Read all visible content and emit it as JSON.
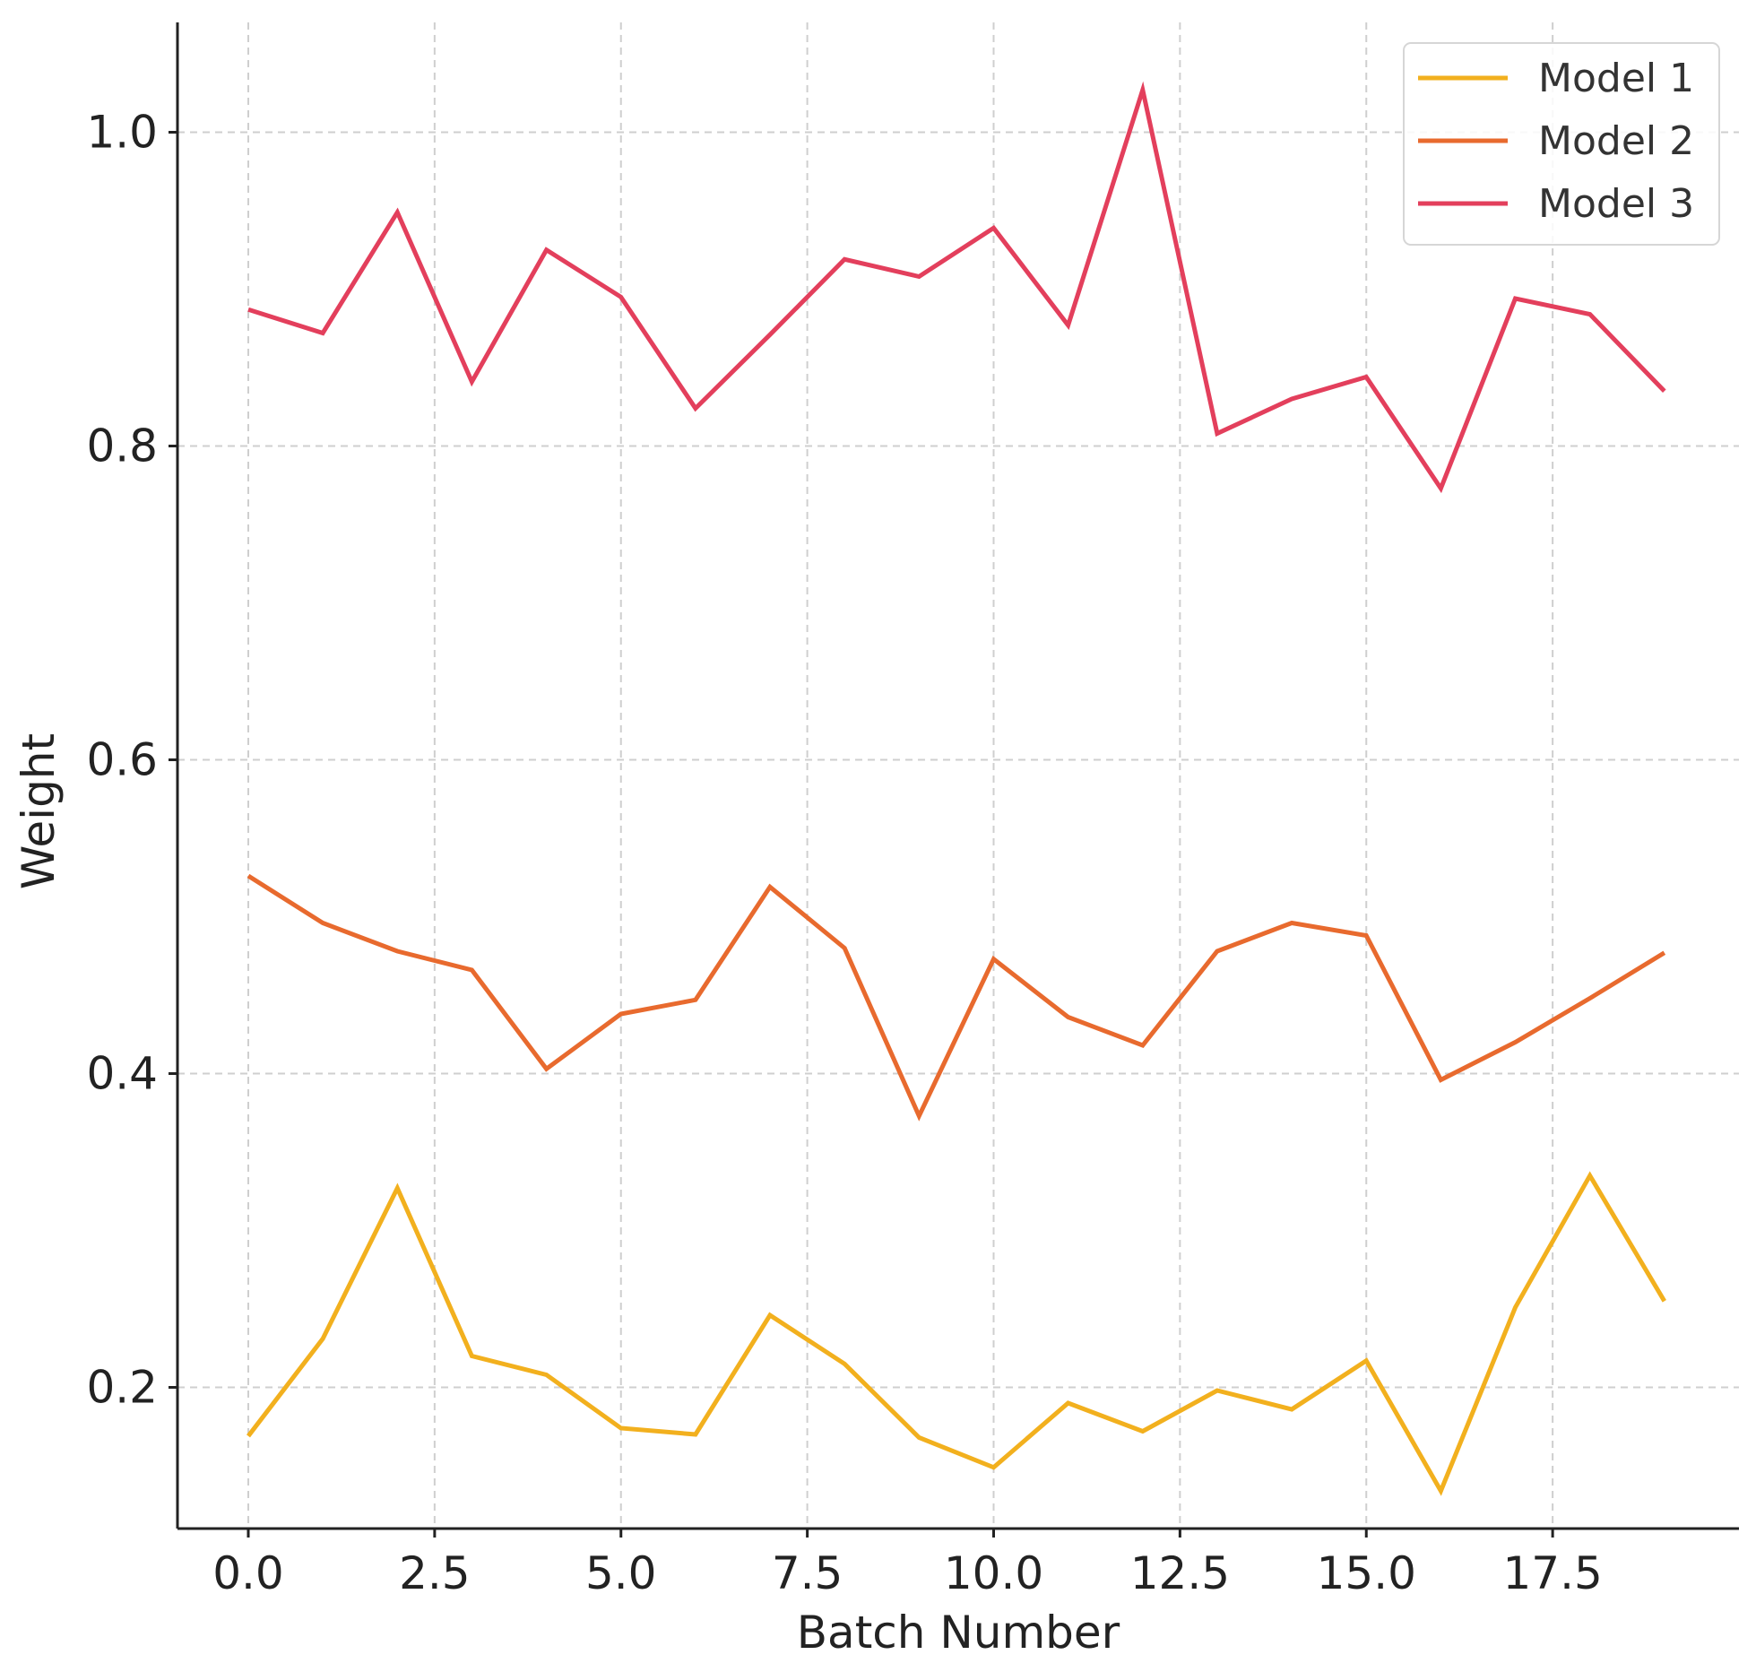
{
  "chart_data": {
    "type": "line",
    "title": "",
    "xlabel": "Batch Number",
    "ylabel": "Weight",
    "xlim": [
      -0.95,
      20.0
    ],
    "ylim": [
      0.11,
      1.07
    ],
    "xticks": [
      0.0,
      2.5,
      5.0,
      7.5,
      10.0,
      12.5,
      15.0,
      17.5
    ],
    "xtick_labels": [
      "0.0",
      "2.5",
      "5.0",
      "7.5",
      "10.0",
      "12.5",
      "15.0",
      "17.5"
    ],
    "yticks": [
      0.2,
      0.4,
      0.6,
      0.8,
      1.0
    ],
    "ytick_labels": [
      "0.2",
      "0.4",
      "0.6",
      "0.8",
      "1.0"
    ],
    "grid": true,
    "legend_position": "top-right",
    "x": [
      0,
      1,
      2,
      3,
      4,
      5,
      6,
      7,
      8,
      9,
      10,
      11,
      12,
      13,
      14,
      15,
      16,
      17,
      18,
      19
    ],
    "series": [
      {
        "name": "Model 1",
        "color": "#f2b01e",
        "values": [
          0.169,
          0.231,
          0.327,
          0.22,
          0.208,
          0.174,
          0.17,
          0.246,
          0.215,
          0.168,
          0.149,
          0.19,
          0.172,
          0.198,
          0.186,
          0.217,
          0.134,
          0.251,
          0.335,
          0.255
        ]
      },
      {
        "name": "Model 2",
        "color": "#e86a2e",
        "values": [
          0.526,
          0.496,
          0.478,
          0.466,
          0.403,
          0.438,
          0.447,
          0.519,
          0.48,
          0.373,
          0.473,
          0.436,
          0.418,
          0.478,
          0.496,
          0.488,
          0.396,
          0.42,
          0.448,
          0.477
        ]
      },
      {
        "name": "Model 3",
        "color": "#e33f5c",
        "values": [
          0.887,
          0.872,
          0.949,
          0.841,
          0.925,
          0.895,
          0.824,
          0.871,
          0.919,
          0.908,
          0.939,
          0.877,
          1.027,
          0.808,
          0.83,
          0.844,
          0.773,
          0.894,
          0.884,
          0.835
        ]
      }
    ]
  }
}
